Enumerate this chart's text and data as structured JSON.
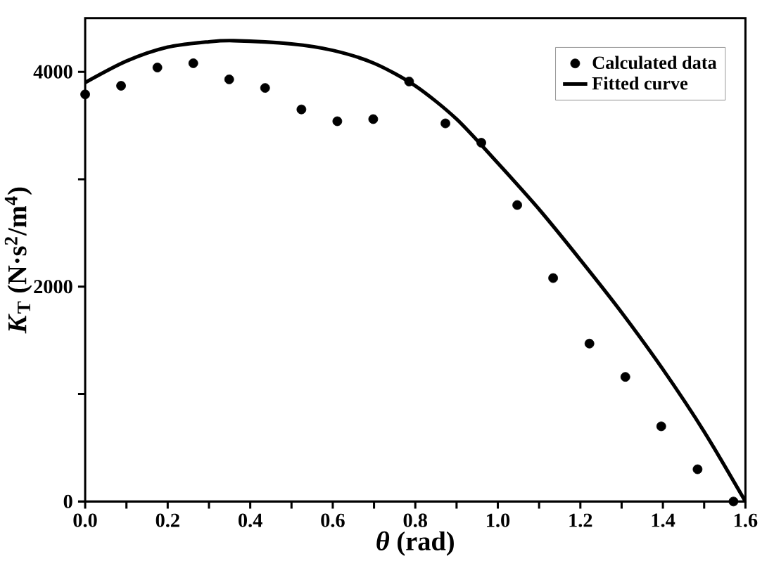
{
  "chart_data": {
    "type": "scatter",
    "xlabel": "*θ* (rad)",
    "ylabel": "*K*$_{T}$ (N·s$^{2}$/m$^{4}$)",
    "xlim": [
      0,
      1.6
    ],
    "ylim": [
      0,
      4500
    ],
    "xticks": [
      {
        "value": 0,
        "label": "0.0"
      },
      {
        "value": 0.1,
        "label": null
      },
      {
        "value": 0.2,
        "label": "0.2"
      },
      {
        "value": 0.3,
        "label": null
      },
      {
        "value": 0.4,
        "label": "0.4"
      },
      {
        "value": 0.5,
        "label": null
      },
      {
        "value": 0.6,
        "label": "0.6"
      },
      {
        "value": 0.7,
        "label": null
      },
      {
        "value": 0.8,
        "label": "0.8"
      },
      {
        "value": 0.9,
        "label": null
      },
      {
        "value": 1,
        "label": "1.0"
      },
      {
        "value": 1.1,
        "label": null
      },
      {
        "value": 1.2,
        "label": "1.2"
      },
      {
        "value": 1.3,
        "label": null
      },
      {
        "value": 1.4,
        "label": "1.4"
      },
      {
        "value": 1.5,
        "label": null
      },
      {
        "value": 1.6,
        "label": "1.6"
      }
    ],
    "yticks": [
      0,
      {
        "value": 1000,
        "label": null
      },
      2000,
      {
        "value": 3000,
        "label": null
      },
      4000
    ],
    "legend": "top right",
    "series": [
      {
        "name": "Calculated data",
        "marker": "circle",
        "color": "#000000",
        "x": [
          0,
          0.087,
          0.175,
          0.262,
          0.349,
          0.436,
          0.524,
          0.611,
          0.698,
          0.785,
          0.873,
          0.96,
          1.047,
          1.134,
          1.222,
          1.309,
          1.396,
          1.484,
          1.571
        ],
        "values": [
          3790,
          3870,
          4040,
          4080,
          3930,
          3850,
          3650,
          3540,
          3560,
          3910,
          3520,
          3340,
          2760,
          2080,
          1470,
          1160,
          700,
          300,
          0
        ]
      },
      {
        "name": "Fitted curve",
        "type": "line",
        "marker": "none",
        "color": "#000000",
        "x": [
          0,
          0.1,
          0.2,
          0.3,
          0.36,
          0.5,
          0.6,
          0.7,
          0.8,
          0.9,
          1.0,
          1.1,
          1.2,
          1.3,
          1.4,
          1.5,
          1.6
        ],
        "values": [
          3900,
          4100,
          4230,
          4280,
          4290,
          4260,
          4200,
          4080,
          3870,
          3560,
          3150,
          2720,
          2250,
          1760,
          1230,
          650,
          0
        ]
      }
    ]
  }
}
